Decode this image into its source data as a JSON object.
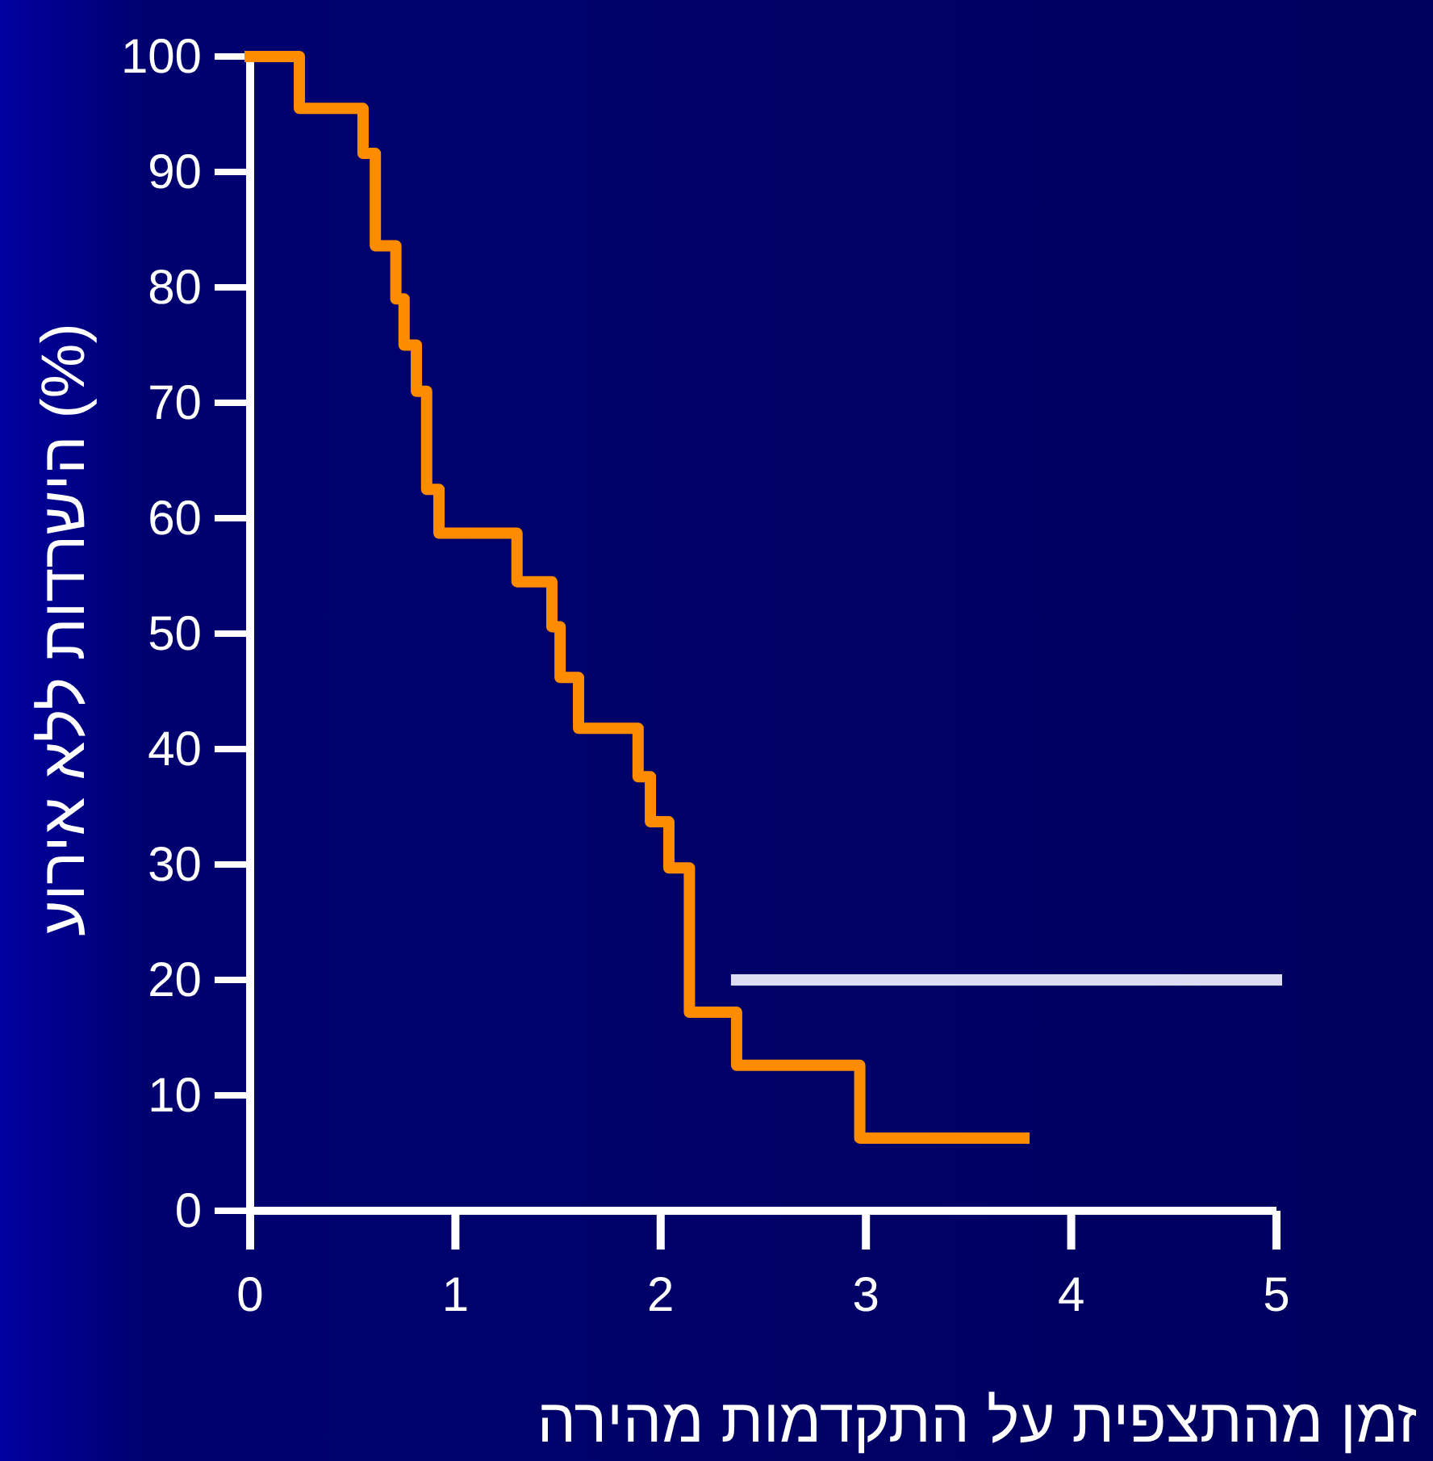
{
  "chart_data": {
    "type": "step",
    "xlabel": "זמן מהתצפית על התקדמות מהירה",
    "ylabel": "הישרדות ללא אירוע (%)",
    "xlim": [
      0,
      5
    ],
    "xticks": [
      0,
      1,
      2,
      3,
      4,
      5
    ],
    "ylim": [
      0,
      100
    ],
    "yticks": [
      0,
      10,
      20,
      30,
      40,
      50,
      60,
      70,
      80,
      90,
      100
    ],
    "series": [
      {
        "color": "#ff8c00",
        "x": [
          0,
          0.24,
          0.55,
          0.61,
          0.71,
          0.75,
          0.81,
          0.86,
          0.92,
          1.3,
          1.47,
          1.51,
          1.6,
          1.89,
          1.95,
          2.04,
          2.14,
          2.37,
          2.97,
          3.77
        ],
        "values": [
          100,
          95.5,
          91.6,
          83.6,
          79,
          75,
          71,
          62.5,
          58.7,
          54.5,
          50.6,
          46.2,
          41.8,
          37.6,
          33.7,
          29.7,
          17.2,
          12.6,
          6.3,
          6.3
        ]
      },
      {
        "type": "line",
        "color": "#dcdcf5",
        "x": [
          2.37,
          5
        ],
        "values": [
          20,
          20
        ]
      }
    ]
  }
}
